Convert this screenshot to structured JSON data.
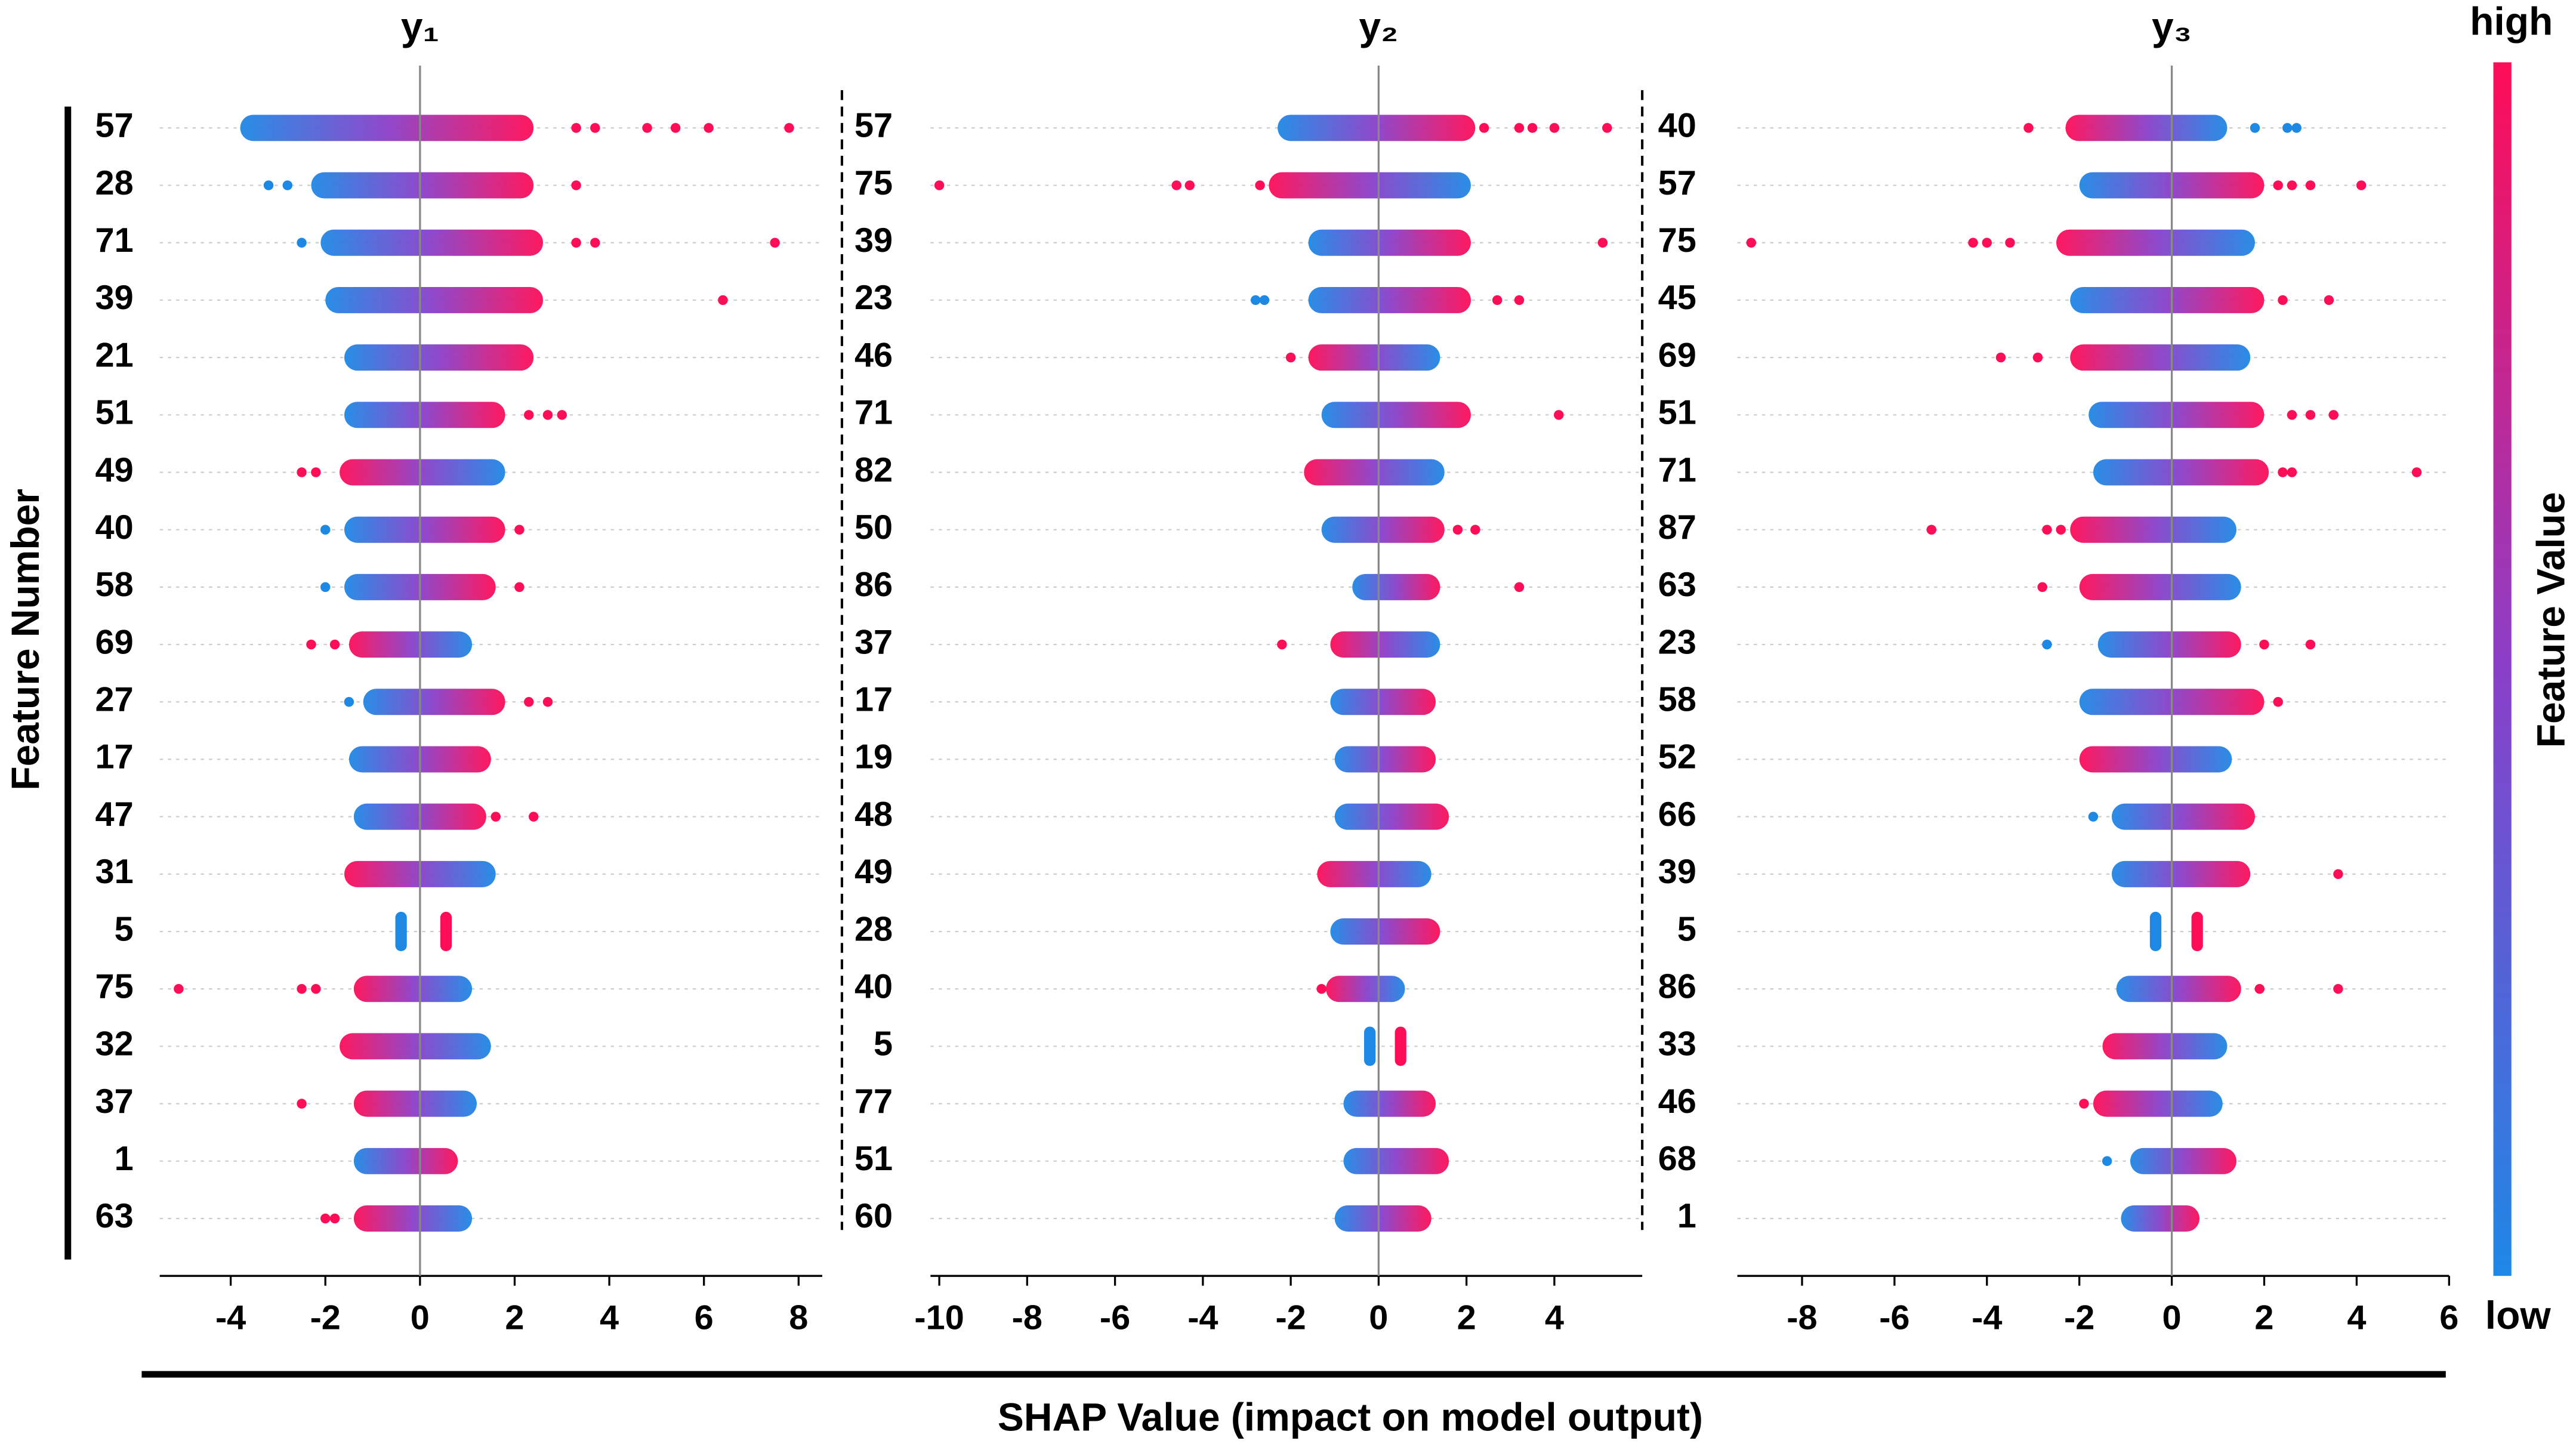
{
  "chart_data": [
    {
      "type": "beeswarm",
      "title": "y₁",
      "xlim": [
        -5.5,
        8.5
      ],
      "xticks": [
        -4,
        -2,
        0,
        2,
        4,
        6,
        8
      ],
      "rows": [
        {
          "feature": "57",
          "core": [
            -3.8,
            2.4
          ],
          "outliers": [
            3.3,
            3.7,
            4.8,
            5.4,
            6.1,
            7.8
          ],
          "high_side": "right"
        },
        {
          "feature": "28",
          "core": [
            -2.3,
            2.4
          ],
          "outliers": [
            -3.2,
            -2.8,
            3.3
          ],
          "high_side": "right"
        },
        {
          "feature": "71",
          "core": [
            -2.1,
            2.6
          ],
          "outliers": [
            -2.5,
            3.3,
            3.7,
            7.5
          ],
          "high_side": "right"
        },
        {
          "feature": "39",
          "core": [
            -2,
            2.6
          ],
          "outliers": [
            6.4
          ],
          "high_side": "right"
        },
        {
          "feature": "21",
          "core": [
            -1.6,
            2.4
          ],
          "outliers": [],
          "high_side": "right"
        },
        {
          "feature": "51",
          "core": [
            -1.6,
            1.8
          ],
          "outliers": [
            2.3,
            2.7,
            3
          ],
          "high_side": "right"
        },
        {
          "feature": "49",
          "core": [
            -1.7,
            1.8
          ],
          "outliers": [
            -2.5,
            -2.2
          ],
          "high_side": "left"
        },
        {
          "feature": "40",
          "core": [
            -1.6,
            1.8
          ],
          "outliers": [
            -2,
            2.1
          ],
          "high_side": "right"
        },
        {
          "feature": "58",
          "core": [
            -1.6,
            1.6
          ],
          "outliers": [
            -2,
            2.1
          ],
          "high_side": "right"
        },
        {
          "feature": "69",
          "core": [
            -1.5,
            1.1
          ],
          "outliers": [
            -2.3,
            -1.8
          ],
          "high_side": "left"
        },
        {
          "feature": "27",
          "core": [
            -1.2,
            1.8
          ],
          "outliers": [
            -1.5,
            2.3,
            2.7
          ],
          "high_side": "right"
        },
        {
          "feature": "17",
          "core": [
            -1.5,
            1.5
          ],
          "outliers": [],
          "high_side": "right"
        },
        {
          "feature": "47",
          "core": [
            -1.4,
            1.4
          ],
          "outliers": [
            1.6,
            2.4
          ],
          "high_side": "right"
        },
        {
          "feature": "31",
          "core": [
            -1.6,
            1.6
          ],
          "outliers": [],
          "high_side": "left"
        },
        {
          "feature": "5",
          "split": [
            -0.4,
            0.55
          ]
        },
        {
          "feature": "75",
          "core": [
            -1.4,
            1.1
          ],
          "outliers": [
            -5.1,
            -2.5,
            -2.2
          ],
          "high_side": "left"
        },
        {
          "feature": "32",
          "core": [
            -1.7,
            1.5
          ],
          "outliers": [],
          "high_side": "left"
        },
        {
          "feature": "37",
          "core": [
            -1.4,
            1.2
          ],
          "outliers": [
            -2.5
          ],
          "high_side": "left"
        },
        {
          "feature": "1",
          "core": [
            -1.4,
            0.8
          ],
          "outliers": [],
          "high_side": "right"
        },
        {
          "feature": "63",
          "core": [
            -1.4,
            1.1
          ],
          "outliers": [
            -2,
            -1.8
          ],
          "high_side": "left"
        }
      ]
    },
    {
      "type": "beeswarm",
      "title": "y₂",
      "xlim": [
        -10.2,
        6
      ],
      "xticks": [
        -10,
        -8,
        -6,
        -4,
        -2,
        0,
        2,
        4
      ],
      "rows": [
        {
          "feature": "57",
          "core": [
            -2.3,
            2.2
          ],
          "outliers": [
            2.4,
            3.2,
            3.5,
            4,
            5.2
          ],
          "high_side": "right"
        },
        {
          "feature": "75",
          "core": [
            -2.5,
            2.1
          ],
          "outliers": [
            -10,
            -4.6,
            -4.3,
            -2.7
          ],
          "high_side": "left"
        },
        {
          "feature": "39",
          "core": [
            -1.6,
            2.1
          ],
          "outliers": [
            5.1
          ],
          "high_side": "right"
        },
        {
          "feature": "23",
          "core": [
            -1.6,
            2.1
          ],
          "outliers": [
            -2.8,
            -2.6,
            2.7,
            3.2
          ],
          "high_side": "right"
        },
        {
          "feature": "46",
          "core": [
            -1.6,
            1.4
          ],
          "outliers": [
            -2
          ],
          "high_side": "left"
        },
        {
          "feature": "71",
          "core": [
            -1.3,
            2.1
          ],
          "outliers": [
            4.1
          ],
          "high_side": "right"
        },
        {
          "feature": "82",
          "core": [
            -1.7,
            1.5
          ],
          "outliers": [],
          "high_side": "left"
        },
        {
          "feature": "50",
          "core": [
            -1.3,
            1.5
          ],
          "outliers": [
            1.8,
            2.2
          ],
          "high_side": "right"
        },
        {
          "feature": "86",
          "core": [
            -0.6,
            1.4
          ],
          "outliers": [
            3.2
          ],
          "high_side": "right"
        },
        {
          "feature": "37",
          "core": [
            -1.1,
            1.4
          ],
          "outliers": [
            -2.2
          ],
          "high_side": "left"
        },
        {
          "feature": "17",
          "core": [
            -1.1,
            1.3
          ],
          "outliers": [],
          "high_side": "right"
        },
        {
          "feature": "19",
          "core": [
            -1,
            1.3
          ],
          "outliers": [],
          "high_side": "right"
        },
        {
          "feature": "48",
          "core": [
            -1,
            1.6
          ],
          "outliers": [],
          "high_side": "right"
        },
        {
          "feature": "49",
          "core": [
            -1.4,
            1.2
          ],
          "outliers": [],
          "high_side": "left"
        },
        {
          "feature": "28",
          "core": [
            -1.1,
            1.4
          ],
          "outliers": [],
          "high_side": "right"
        },
        {
          "feature": "40",
          "core": [
            -1.2,
            0.6
          ],
          "outliers": [
            -1.3
          ],
          "high_side": "left"
        },
        {
          "feature": "5",
          "split": [
            -0.2,
            0.5
          ]
        },
        {
          "feature": "77",
          "core": [
            -0.8,
            1.3
          ],
          "outliers": [],
          "high_side": "right"
        },
        {
          "feature": "51",
          "core": [
            -0.8,
            1.6
          ],
          "outliers": [],
          "high_side": "right"
        },
        {
          "feature": "60",
          "core": [
            -1,
            1.2
          ],
          "outliers": [],
          "high_side": "right"
        }
      ]
    },
    {
      "type": "beeswarm",
      "title": "y₃",
      "xlim": [
        -9.4,
        6
      ],
      "xticks": [
        -8,
        -6,
        -4,
        -2,
        0,
        2,
        4,
        6
      ],
      "rows": [
        {
          "feature": "40",
          "core": [
            -2.3,
            1.2
          ],
          "outliers": [
            -3.1,
            1.8,
            2.5,
            2.7
          ],
          "high_side": "left"
        },
        {
          "feature": "57",
          "core": [
            -2,
            2
          ],
          "outliers": [
            2.3,
            2.6,
            3,
            4.1
          ],
          "high_side": "right"
        },
        {
          "feature": "75",
          "core": [
            -2.5,
            1.8
          ],
          "outliers": [
            -9.1,
            -4.3,
            -4,
            -3.5
          ],
          "high_side": "left"
        },
        {
          "feature": "45",
          "core": [
            -2.2,
            2
          ],
          "outliers": [
            2.4,
            3.4
          ],
          "high_side": "right"
        },
        {
          "feature": "69",
          "core": [
            -2.2,
            1.7
          ],
          "outliers": [
            -3.7,
            -2.9
          ],
          "high_side": "left"
        },
        {
          "feature": "51",
          "core": [
            -1.8,
            2
          ],
          "outliers": [
            2.6,
            3,
            3.5
          ],
          "high_side": "right"
        },
        {
          "feature": "71",
          "core": [
            -1.7,
            2.1
          ],
          "outliers": [
            2.4,
            2.6,
            5.3
          ],
          "high_side": "right"
        },
        {
          "feature": "87",
          "core": [
            -2.2,
            1.4
          ],
          "outliers": [
            -5.2,
            -2.7,
            -2.4
          ],
          "high_side": "left"
        },
        {
          "feature": "63",
          "core": [
            -2,
            1.5
          ],
          "outliers": [
            -2.8
          ],
          "high_side": "left"
        },
        {
          "feature": "23",
          "core": [
            -1.6,
            1.5
          ],
          "outliers": [
            -2.7,
            2,
            3
          ],
          "high_side": "right"
        },
        {
          "feature": "58",
          "core": [
            -2,
            2
          ],
          "outliers": [
            2.3
          ],
          "high_side": "right"
        },
        {
          "feature": "52",
          "core": [
            -2,
            1.3
          ],
          "outliers": [],
          "high_side": "left"
        },
        {
          "feature": "66",
          "core": [
            -1.3,
            1.8
          ],
          "outliers": [
            -1.7
          ],
          "high_side": "right"
        },
        {
          "feature": "39",
          "core": [
            -1.3,
            1.7
          ],
          "outliers": [
            3.6
          ],
          "high_side": "right"
        },
        {
          "feature": "5",
          "split": [
            -0.35,
            0.55
          ]
        },
        {
          "feature": "86",
          "core": [
            -1.2,
            1.5
          ],
          "outliers": [
            1.9,
            3.6
          ],
          "high_side": "right"
        },
        {
          "feature": "33",
          "core": [
            -1.5,
            1.2
          ],
          "outliers": [],
          "high_side": "left"
        },
        {
          "feature": "46",
          "core": [
            -1.7,
            1.1
          ],
          "outliers": [
            -1.9
          ],
          "high_side": "left"
        },
        {
          "feature": "68",
          "core": [
            -0.9,
            1.4
          ],
          "outliers": [
            -1.4
          ],
          "high_side": "right"
        },
        {
          "feature": "1",
          "core": [
            -1.1,
            0.6
          ],
          "outliers": [],
          "high_side": "right"
        }
      ]
    }
  ],
  "ylabel": "Feature Number",
  "xlabel": "SHAP Value (impact on model output)",
  "colorbar": {
    "title": "Feature Value",
    "low_label": "low",
    "high_label": "high",
    "low_color": "#1e88e5",
    "high_color": "#ff0d57"
  }
}
